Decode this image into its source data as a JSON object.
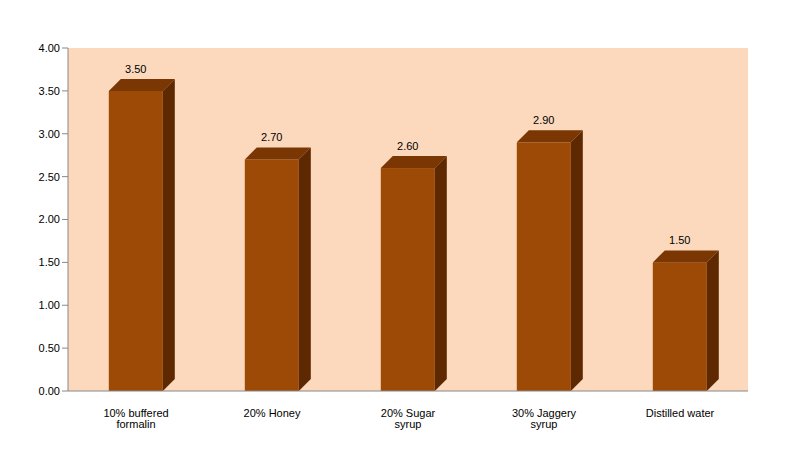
{
  "chart_data": {
    "type": "bar",
    "categories": [
      "10% buffered formalin",
      "20% Honey",
      "20% Sugar syrup",
      "30% Jaggery syrup",
      "Distilled water"
    ],
    "values": [
      3.5,
      2.7,
      2.6,
      2.9,
      1.5
    ],
    "value_labels": [
      "3.50",
      "2.70",
      "2.60",
      "2.90",
      "1.50"
    ],
    "data_labels": true,
    "color": "#9c4a06",
    "ylim": [
      0,
      4
    ],
    "yticks": [
      {
        "value": 0,
        "label": "0.00"
      },
      {
        "value": 0.5,
        "label": "0.50"
      },
      {
        "value": 1,
        "label": "1.00"
      },
      {
        "value": 1.5,
        "label": "1.50"
      },
      {
        "value": 2,
        "label": "2.00"
      },
      {
        "value": 2.5,
        "label": "2.50"
      },
      {
        "value": 3,
        "label": "3.00"
      },
      {
        "value": 3.5,
        "label": "3.50"
      },
      {
        "value": 4,
        "label": "4.00"
      }
    ],
    "grid": false
  }
}
